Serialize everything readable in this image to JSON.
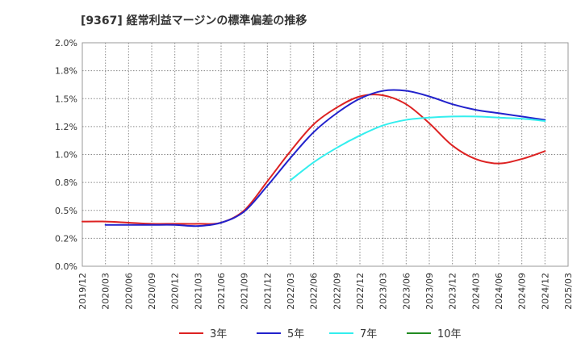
{
  "chart_data": {
    "type": "line",
    "title": "[9367]  経常利益マージンの標準偏差の推移",
    "xlabel": "",
    "ylabel": "",
    "x_ticks": [
      "2019/12",
      "2020/03",
      "2020/06",
      "2020/09",
      "2020/12",
      "2021/03",
      "2021/06",
      "2021/09",
      "2021/12",
      "2022/03",
      "2022/06",
      "2022/09",
      "2022/12",
      "2023/03",
      "2023/06",
      "2023/09",
      "2023/12",
      "2024/03",
      "2024/06",
      "2024/09",
      "2024/12",
      "2025/03"
    ],
    "y_ticks": [
      "0.0%",
      "0.2%",
      "0.5%",
      "0.8%",
      "1.0%",
      "1.2%",
      "1.5%",
      "1.8%",
      "2.0%"
    ],
    "ylim": [
      0,
      2.0
    ],
    "grid": true,
    "legend_position": "bottom",
    "series": [
      {
        "name": "3年",
        "color": "#dd2222",
        "points": [
          [
            "2019/12",
            0.4
          ],
          [
            "2020/03",
            0.4
          ],
          [
            "2020/06",
            0.39
          ],
          [
            "2020/09",
            0.38
          ],
          [
            "2020/12",
            0.38
          ],
          [
            "2021/03",
            0.38
          ],
          [
            "2021/06",
            0.39
          ],
          [
            "2021/09",
            0.5
          ],
          [
            "2021/12",
            0.76
          ],
          [
            "2022/03",
            1.03
          ],
          [
            "2022/06",
            1.27
          ],
          [
            "2022/09",
            1.42
          ],
          [
            "2022/12",
            1.52
          ],
          [
            "2023/03",
            1.53
          ],
          [
            "2023/06",
            1.45
          ],
          [
            "2023/09",
            1.28
          ],
          [
            "2023/12",
            1.08
          ],
          [
            "2024/03",
            0.96
          ],
          [
            "2024/06",
            0.92
          ],
          [
            "2024/09",
            0.96
          ],
          [
            "2024/12",
            1.03
          ]
        ]
      },
      {
        "name": "5年",
        "color": "#2222cc",
        "points": [
          [
            "2020/03",
            0.37
          ],
          [
            "2020/06",
            0.37
          ],
          [
            "2020/09",
            0.37
          ],
          [
            "2020/12",
            0.37
          ],
          [
            "2021/03",
            0.36
          ],
          [
            "2021/06",
            0.39
          ],
          [
            "2021/09",
            0.49
          ],
          [
            "2021/12",
            0.72
          ],
          [
            "2022/03",
            0.97
          ],
          [
            "2022/06",
            1.2
          ],
          [
            "2022/09",
            1.37
          ],
          [
            "2022/12",
            1.5
          ],
          [
            "2023/03",
            1.57
          ],
          [
            "2023/06",
            1.57
          ],
          [
            "2023/09",
            1.52
          ],
          [
            "2023/12",
            1.45
          ],
          [
            "2024/03",
            1.4
          ],
          [
            "2024/06",
            1.37
          ],
          [
            "2024/09",
            1.34
          ],
          [
            "2024/12",
            1.31
          ]
        ]
      },
      {
        "name": "7年",
        "color": "#33eeee",
        "points": [
          [
            "2022/03",
            0.77
          ],
          [
            "2022/06",
            0.93
          ],
          [
            "2022/09",
            1.06
          ],
          [
            "2022/12",
            1.17
          ],
          [
            "2023/03",
            1.26
          ],
          [
            "2023/06",
            1.31
          ],
          [
            "2023/09",
            1.33
          ],
          [
            "2023/12",
            1.34
          ],
          [
            "2024/03",
            1.34
          ],
          [
            "2024/06",
            1.33
          ],
          [
            "2024/09",
            1.32
          ],
          [
            "2024/12",
            1.3
          ]
        ]
      },
      {
        "name": "10年",
        "color": "#228b22",
        "points": []
      }
    ]
  }
}
